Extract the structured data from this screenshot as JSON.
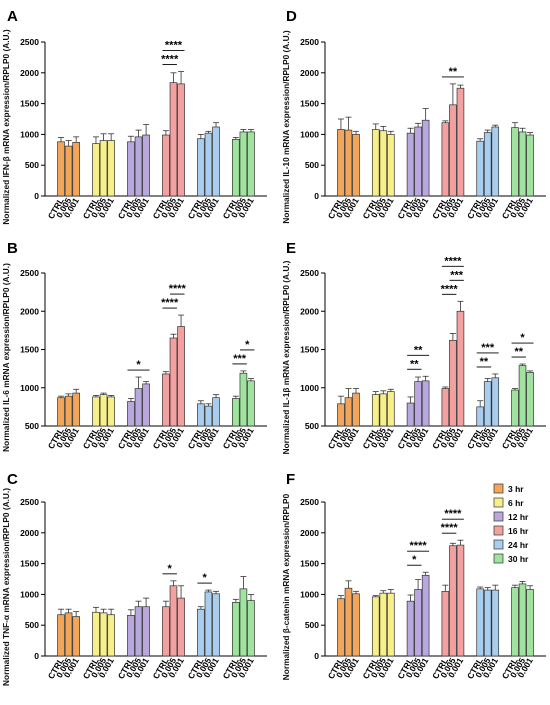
{
  "figure": {
    "time_points": [
      "3 hr",
      "6 hr",
      "12 hr",
      "16 hr",
      "24 hr",
      "30 hr"
    ],
    "time_colors": [
      "#f3a65a",
      "#f7f08a",
      "#b9a8e0",
      "#f2a0a0",
      "#a9cdee",
      "#9fe39f"
    ],
    "legend": [
      {
        "label": "3 hr",
        "color": "#f3a65a"
      },
      {
        "label": "6 hr",
        "color": "#f7f08a"
      },
      {
        "label": "12 hr",
        "color": "#b9a8e0"
      },
      {
        "label": "16 hr",
        "color": "#f2a0a0"
      },
      {
        "label": "24 hr",
        "color": "#a9cdee"
      },
      {
        "label": "30 hr",
        "color": "#9fe39f"
      }
    ],
    "xtick_labels": [
      "CTRL",
      "0.005",
      "0.001"
    ]
  },
  "chart_data": [
    {
      "panel": "A",
      "type": "bar",
      "ylabel": "Normalized IFN-β mRNA expression/RPLP0 (A.U.)",
      "ylim": [
        0,
        2500
      ],
      "yticks": [
        0,
        500,
        1000,
        1500,
        2000,
        2500
      ],
      "values": [
        [
          880,
          810,
          870
        ],
        [
          850,
          900,
          900
        ],
        [
          880,
          960,
          990
        ],
        [
          990,
          1840,
          1820
        ],
        [
          930,
          1020,
          1120
        ],
        [
          920,
          1040,
          1040
        ]
      ],
      "errors": [
        [
          70,
          90,
          90
        ],
        [
          110,
          110,
          110
        ],
        [
          90,
          110,
          170
        ],
        [
          70,
          160,
          200
        ],
        [
          70,
          30,
          70
        ],
        [
          30,
          40,
          40
        ]
      ],
      "annotations": [
        {
          "group": 3,
          "from": 0,
          "to": 1,
          "label": "****"
        },
        {
          "group": 3,
          "from": 0,
          "to": 2,
          "label": "****"
        }
      ]
    },
    {
      "panel": "D",
      "type": "bar",
      "ylabel": "Normalized IL-10 mRNA expression/RPLP0 (A.U.)",
      "ylim": [
        0,
        2500
      ],
      "yticks": [
        0,
        500,
        1000,
        1500,
        2000,
        2500
      ],
      "values": [
        [
          1080,
          1070,
          1000
        ],
        [
          1080,
          1060,
          1000
        ],
        [
          1020,
          1120,
          1230
        ],
        [
          1190,
          1480,
          1750
        ],
        [
          890,
          1030,
          1120
        ],
        [
          1110,
          1040,
          990
        ]
      ],
      "errors": [
        [
          170,
          210,
          50
        ],
        [
          90,
          70,
          50
        ],
        [
          80,
          60,
          190
        ],
        [
          30,
          340,
          50
        ],
        [
          40,
          40,
          30
        ],
        [
          80,
          60,
          40
        ]
      ],
      "annotations": [
        {
          "group": 3,
          "from": 0,
          "to": 2,
          "label": "**"
        }
      ]
    },
    {
      "panel": "B",
      "type": "bar",
      "ylabel": "Normalized IL-6 mRNA expression/RPLP0 (A.U.)",
      "ylim": [
        500,
        2500
      ],
      "yticks": [
        500,
        1000,
        1500,
        2000,
        2500
      ],
      "values": [
        [
          870,
          890,
          930
        ],
        [
          880,
          910,
          880
        ],
        [
          820,
          990,
          1050
        ],
        [
          1180,
          1650,
          1800
        ],
        [
          790,
          760,
          870
        ],
        [
          860,
          1190,
          1090
        ]
      ],
      "errors": [
        [
          20,
          30,
          50
        ],
        [
          20,
          20,
          20
        ],
        [
          40,
          150,
          30
        ],
        [
          30,
          50,
          150
        ],
        [
          40,
          30,
          40
        ],
        [
          30,
          30,
          30
        ]
      ],
      "annotations": [
        {
          "group": 2,
          "from": 0,
          "to": 2,
          "label": "*"
        },
        {
          "group": 3,
          "from": 0,
          "to": 1,
          "label": "****"
        },
        {
          "group": 3,
          "from": 1,
          "to": 2,
          "label": "****"
        },
        {
          "group": 5,
          "from": 0,
          "to": 1,
          "label": "***"
        },
        {
          "group": 5,
          "from": 1,
          "to": 2,
          "label": "*"
        }
      ]
    },
    {
      "panel": "E",
      "type": "bar",
      "ylabel": "Normalized IL-1β mRNA expression/RPLP0 (A.U.)",
      "ylim": [
        500,
        2500
      ],
      "yticks": [
        500,
        1000,
        1500,
        2000,
        2500
      ],
      "values": [
        [
          790,
          870,
          930
        ],
        [
          910,
          920,
          950
        ],
        [
          800,
          1080,
          1090
        ],
        [
          990,
          1620,
          2000
        ],
        [
          750,
          1080,
          1130
        ],
        [
          970,
          1290,
          1200
        ]
      ],
      "errors": [
        [
          100,
          120,
          60
        ],
        [
          40,
          40,
          30
        ],
        [
          80,
          60,
          60
        ],
        [
          20,
          90,
          130
        ],
        [
          80,
          40,
          50
        ],
        [
          20,
          20,
          20
        ]
      ],
      "annotations": [
        {
          "group": 2,
          "from": 0,
          "to": 1,
          "label": "**"
        },
        {
          "group": 2,
          "from": 0,
          "to": 2,
          "label": "**"
        },
        {
          "group": 3,
          "from": 0,
          "to": 1,
          "label": "****"
        },
        {
          "group": 3,
          "from": 0,
          "to": 2,
          "label": "****"
        },
        {
          "group": 3,
          "from": 1,
          "to": 2,
          "label": "***"
        },
        {
          "group": 4,
          "from": 0,
          "to": 1,
          "label": "**"
        },
        {
          "group": 4,
          "from": 0,
          "to": 2,
          "label": "***"
        },
        {
          "group": 5,
          "from": 0,
          "to": 1,
          "label": "**"
        },
        {
          "group": 5,
          "from": 0,
          "to": 2,
          "label": "*"
        }
      ]
    },
    {
      "panel": "C",
      "type": "bar",
      "ylabel": "Normalized TNF-α mRNA expression/RPLP0 (A.U.)",
      "ylim": [
        0,
        2500
      ],
      "yticks": [
        0,
        500,
        1000,
        1500,
        2000,
        2500
      ],
      "values": [
        [
          670,
          700,
          640
        ],
        [
          710,
          700,
          670
        ],
        [
          660,
          800,
          800
        ],
        [
          800,
          1140,
          940
        ],
        [
          760,
          1040,
          1010
        ],
        [
          870,
          1090,
          900
        ]
      ],
      "errors": [
        [
          90,
          60,
          80
        ],
        [
          80,
          60,
          90
        ],
        [
          90,
          90,
          140
        ],
        [
          90,
          80,
          200
        ],
        [
          40,
          30,
          40
        ],
        [
          50,
          200,
          100
        ]
      ],
      "annotations": [
        {
          "group": 3,
          "from": 0,
          "to": 1,
          "label": "*"
        },
        {
          "group": 4,
          "from": 0,
          "to": 1,
          "label": "*"
        }
      ]
    },
    {
      "panel": "F",
      "type": "bar",
      "ylabel": "Normalized β-catenin mRNA expression/RPLP0",
      "ylim": [
        0,
        2500
      ],
      "yticks": [
        0,
        500,
        1000,
        1500,
        2000,
        2500
      ],
      "values": [
        [
          930,
          1100,
          1010
        ],
        [
          960,
          1020,
          1020
        ],
        [
          890,
          1080,
          1310
        ],
        [
          1050,
          1790,
          1800
        ],
        [
          1090,
          1070,
          1070
        ],
        [
          1110,
          1170,
          1080
        ]
      ],
      "errors": [
        [
          50,
          120,
          40
        ],
        [
          20,
          40,
          60
        ],
        [
          100,
          160,
          50
        ],
        [
          100,
          40,
          80
        ],
        [
          30,
          40,
          80
        ],
        [
          40,
          40,
          60
        ]
      ],
      "annotations": [
        {
          "group": 2,
          "from": 0,
          "to": 1,
          "label": "*"
        },
        {
          "group": 2,
          "from": 0,
          "to": 2,
          "label": "****"
        },
        {
          "group": 3,
          "from": 0,
          "to": 1,
          "label": "****"
        },
        {
          "group": 3,
          "from": 0,
          "to": 2,
          "label": "****"
        }
      ]
    }
  ]
}
